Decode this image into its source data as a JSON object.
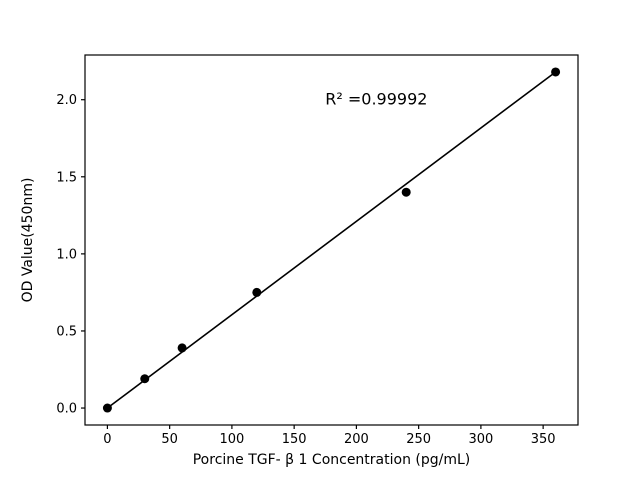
{
  "figure": {
    "background": "#ffffff"
  },
  "chart_data": {
    "type": "scatter",
    "title": "",
    "xlabel": "Porcine TGF- β 1 Concentration (pg/mL)",
    "ylabel": "OD Value(450nm)",
    "annotation": {
      "text": "R² =0.99992",
      "x": 175,
      "y": 1.97
    },
    "points": {
      "x": [
        0,
        30,
        60,
        120,
        240,
        360
      ],
      "y": [
        0.0,
        0.19,
        0.39,
        0.75,
        1.4,
        2.18
      ]
    },
    "fit_line": {
      "x": [
        0,
        360
      ],
      "y": [
        0.0,
        2.18
      ]
    },
    "xticks": [
      0,
      50,
      100,
      150,
      200,
      250,
      300,
      350
    ],
    "yticks": [
      0.0,
      0.5,
      1.0,
      1.5,
      2.0
    ],
    "xlim": [
      -18,
      378
    ],
    "ylim": [
      -0.11,
      2.29
    ],
    "marker_color": "#000000",
    "line_color": "#000000",
    "axis_color": "#000000",
    "grid": false,
    "legend_position": "none"
  }
}
